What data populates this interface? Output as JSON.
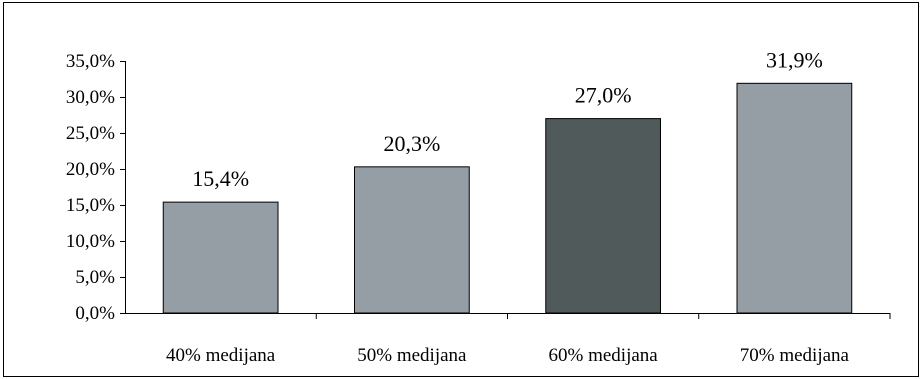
{
  "chart_data": {
    "type": "bar",
    "categories": [
      "40% medijana",
      "50% medijana",
      "60% medijana",
      "70% medijana"
    ],
    "values": [
      15.4,
      20.3,
      27.0,
      31.9
    ],
    "data_labels": [
      "15,4%",
      "20,3%",
      "27,0%",
      "31,9%"
    ],
    "y_ticks": [
      0,
      5,
      10,
      15,
      20,
      25,
      30,
      35
    ],
    "y_tick_labels": [
      "0,0%",
      "5,0%",
      "10,0%",
      "15,0%",
      "20,0%",
      "25,0%",
      "30,0%",
      "35,0%"
    ],
    "ylim": [
      0,
      35
    ],
    "grid": false,
    "colors": {
      "bar": "#969ea5",
      "highlight_bar": "#505a5b",
      "axis": "#000000"
    },
    "highlight_index": 2
  }
}
